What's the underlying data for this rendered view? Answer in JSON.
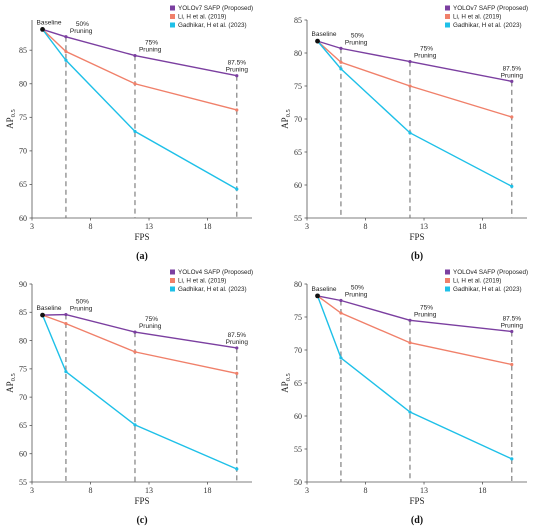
{
  "colors": {
    "proposed": "#7B3FA0",
    "li": "#F0806A",
    "gadhikar": "#1EC0E8",
    "baseline": "#111111",
    "dashed": "#808080",
    "axis": "#555555"
  },
  "chart_data": [
    {
      "panel": "(a)",
      "type": "line",
      "xlabel": "FPS",
      "ylabel_main": "AP",
      "ylabel_sub": "0.5",
      "x_ticks": [
        3,
        8,
        13,
        18
      ],
      "xlim": [
        3,
        21.8
      ],
      "y_ticks": [
        60,
        65,
        70,
        75,
        80,
        85
      ],
      "ylim": [
        60,
        89.5
      ],
      "baseline": {
        "label": "Baseline",
        "x": 3.9,
        "y": 88.1
      },
      "annotations": [
        {
          "line1": "50%",
          "line2": "Pruning",
          "x": 5.9
        },
        {
          "line1": "75%",
          "line2": "Pruning",
          "x": 11.8
        },
        {
          "line1": "87.5%",
          "line2": "Pruning",
          "x": 20.5
        }
      ],
      "series": [
        {
          "name": "YOLOv7 SAFP (Proposed)",
          "color_key": "proposed",
          "x": [
            3.9,
            5.9,
            11.8,
            20.5
          ],
          "y": [
            88.1,
            87.0,
            84.2,
            81.2
          ]
        },
        {
          "name": "Li, H et al. (2019)",
          "color_key": "li",
          "x": [
            3.9,
            5.9,
            11.8,
            20.5
          ],
          "y": [
            88.1,
            84.8,
            80.0,
            76.1
          ]
        },
        {
          "name": "Gadhikar, H et al. (2023)",
          "color_key": "gadhikar",
          "x": [
            3.9,
            5.9,
            11.8,
            20.5
          ],
          "y": [
            88.1,
            83.5,
            72.9,
            64.3
          ]
        }
      ]
    },
    {
      "panel": "(b)",
      "type": "line",
      "xlabel": "FPS",
      "ylabel_main": "AP",
      "ylabel_sub": "0.5",
      "x_ticks": [
        3,
        8,
        13,
        18
      ],
      "xlim": [
        3,
        21.8
      ],
      "y_ticks": [
        55,
        60,
        65,
        70,
        75,
        80,
        85
      ],
      "ylim": [
        55,
        85
      ],
      "baseline": {
        "label": "Baseline",
        "x": 3.9,
        "y": 81.8
      },
      "annotations": [
        {
          "line1": "50%",
          "line2": "Pruning",
          "x": 5.9
        },
        {
          "line1": "75%",
          "line2": "Pruning",
          "x": 11.8
        },
        {
          "line1": "87.5%",
          "line2": "Pruning",
          "x": 20.5
        }
      ],
      "series": [
        {
          "name": "YOLOv7 SAFP (Proposed)",
          "color_key": "proposed",
          "x": [
            3.9,
            5.9,
            11.8,
            20.5
          ],
          "y": [
            81.8,
            80.7,
            78.7,
            75.7
          ]
        },
        {
          "name": "Li, H et al. (2019)",
          "color_key": "li",
          "x": [
            3.9,
            5.9,
            11.8,
            20.5
          ],
          "y": [
            81.8,
            78.6,
            75.0,
            70.3
          ]
        },
        {
          "name": "Gadhikar, H et al. (2023)",
          "color_key": "gadhikar",
          "x": [
            3.9,
            5.9,
            11.8,
            20.5
          ],
          "y": [
            81.8,
            77.6,
            67.9,
            59.8
          ]
        }
      ]
    },
    {
      "panel": "(c)",
      "type": "line",
      "xlabel": "FPS",
      "ylabel_main": "AP",
      "ylabel_sub": "0.5",
      "x_ticks": [
        3,
        8,
        13,
        18
      ],
      "xlim": [
        3,
        21.8
      ],
      "y_ticks": [
        55,
        60,
        65,
        70,
        75,
        80,
        85,
        90
      ],
      "ylim": [
        55,
        90
      ],
      "baseline": {
        "label": "Baseline",
        "x": 3.9,
        "y": 84.5
      },
      "annotations": [
        {
          "line1": "50%",
          "line2": "Pruning",
          "x": 5.9
        },
        {
          "line1": "75%",
          "line2": "Pruning",
          "x": 11.8
        },
        {
          "line1": "87.5%",
          "line2": "Pruning",
          "x": 20.5
        }
      ],
      "series": [
        {
          "name": "YOLOv4 SAFP (Proposed)",
          "color_key": "proposed",
          "x": [
            3.9,
            5.9,
            11.8,
            20.5
          ],
          "y": [
            84.5,
            84.6,
            81.5,
            78.7
          ]
        },
        {
          "name": "Li, H et al. (2019)",
          "color_key": "li",
          "x": [
            3.9,
            5.9,
            11.8,
            20.5
          ],
          "y": [
            84.5,
            83.0,
            78.0,
            74.2
          ]
        },
        {
          "name": "Gadhikar, H et al. (2023)",
          "color_key": "gadhikar",
          "x": [
            3.9,
            5.9,
            11.8,
            20.5
          ],
          "y": [
            84.5,
            74.5,
            65.1,
            57.3
          ]
        }
      ]
    },
    {
      "panel": "(d)",
      "type": "line",
      "xlabel": "FPS",
      "ylabel_main": "AP",
      "ylabel_sub": "0.5",
      "x_ticks": [
        3,
        8,
        13,
        18
      ],
      "xlim": [
        3,
        21.8
      ],
      "y_ticks": [
        50,
        55,
        60,
        65,
        70,
        75,
        80
      ],
      "ylim": [
        50,
        80
      ],
      "baseline": {
        "label": "Baseline",
        "x": 3.9,
        "y": 78.2
      },
      "annotations": [
        {
          "line1": "50%",
          "line2": "Pruning",
          "x": 5.9
        },
        {
          "line1": "75%",
          "line2": "Pruning",
          "x": 11.8
        },
        {
          "line1": "87.5%",
          "line2": "Pruning",
          "x": 20.5
        }
      ],
      "series": [
        {
          "name": "YOLOv4 SAFP (Proposed)",
          "color_key": "proposed",
          "x": [
            3.9,
            5.9,
            11.8,
            20.5
          ],
          "y": [
            78.2,
            77.5,
            74.5,
            72.8
          ]
        },
        {
          "name": "Li, H et al. (2019)",
          "color_key": "li",
          "x": [
            3.9,
            5.9,
            11.8,
            20.5
          ],
          "y": [
            78.2,
            75.6,
            71.1,
            67.8
          ]
        },
        {
          "name": "Gadhikar, H et al. (2023)",
          "color_key": "gadhikar",
          "x": [
            3.9,
            5.9,
            11.8,
            20.5
          ],
          "y": [
            78.2,
            68.8,
            60.6,
            53.5
          ]
        }
      ]
    }
  ]
}
